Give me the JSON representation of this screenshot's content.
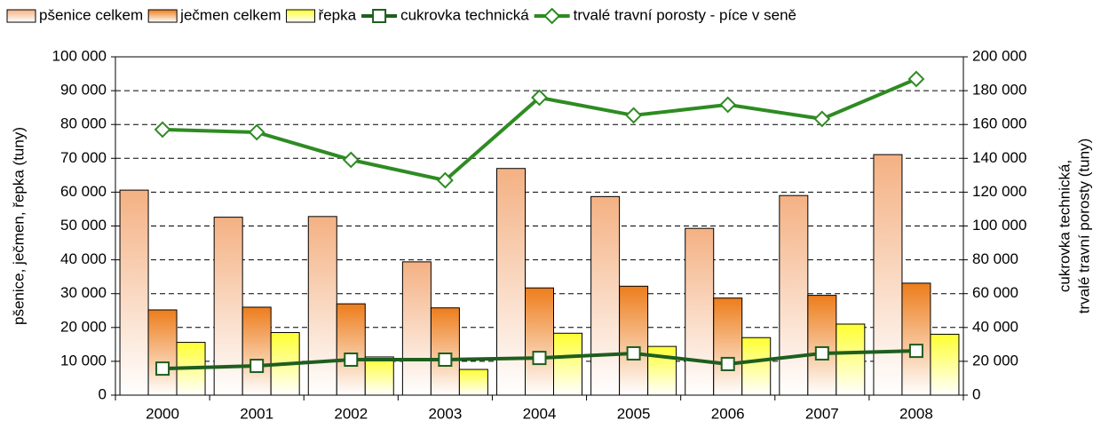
{
  "chart_data": {
    "type": "bar_line",
    "categories": [
      "2000",
      "2001",
      "2002",
      "2003",
      "2004",
      "2005",
      "2006",
      "2007",
      "2008"
    ],
    "series": [
      {
        "name": "pšenice celkem",
        "type": "bar",
        "color": "#f4b183",
        "values": [
          60600,
          52600,
          52800,
          39400,
          67000,
          58700,
          49300,
          59000,
          71100
        ]
      },
      {
        "name": "ječmen celkem",
        "type": "bar",
        "color": "#ed7d1c",
        "values": [
          25200,
          26000,
          27000,
          25800,
          31700,
          32200,
          28700,
          29500,
          33100
        ]
      },
      {
        "name": "řepka",
        "type": "bar",
        "color": "#ffff33",
        "values": [
          15600,
          18500,
          11300,
          7600,
          18300,
          14400,
          17000,
          21000,
          18000
        ]
      },
      {
        "name": "cukrovka technická",
        "type": "line",
        "marker": "square",
        "axis": "y2",
        "color": "#1e5e1e",
        "values": [
          15700,
          17300,
          21000,
          21000,
          22000,
          24700,
          18400,
          24700,
          26200
        ]
      },
      {
        "name": "trvalé travní porosty - píce v seně",
        "type": "line",
        "marker": "diamond",
        "axis": "y2",
        "color": "#2e8b22",
        "values": [
          157000,
          155400,
          139100,
          127000,
          175900,
          165400,
          171700,
          163300,
          186900
        ]
      }
    ],
    "y_label": "pšenice, ječmen, řepka  (tuny)",
    "y2_label": [
      "cukrovka technická,",
      "trvalé travní porosty (tuny)"
    ],
    "ylim": [
      0,
      100000
    ],
    "yticks": [
      0,
      {
        "value": 10000,
        "label": "10 000"
      },
      {
        "value": 20000,
        "label": "20 000"
      },
      {
        "value": 30000,
        "label": "30 000"
      },
      {
        "value": 40000,
        "label": "40 000"
      },
      {
        "value": 50000,
        "label": "50 000"
      },
      {
        "value": 60000,
        "label": "60 000"
      },
      {
        "value": 70000,
        "label": "70 000"
      },
      {
        "value": 80000,
        "label": "80 000"
      },
      {
        "value": 90000,
        "label": "90 000"
      },
      {
        "value": 100000,
        "label": "100 000"
      }
    ],
    "y2lim": [
      0,
      200000
    ],
    "y2ticks": [
      0,
      {
        "value": 20000,
        "label": "20 000"
      },
      {
        "value": 40000,
        "label": "40 000"
      },
      {
        "value": 60000,
        "label": "60 000"
      },
      {
        "value": 80000,
        "label": "80 000"
      },
      {
        "value": 100000,
        "label": "100 000"
      },
      {
        "value": 120000,
        "label": "120 000"
      },
      {
        "value": 140000,
        "label": "140 000"
      },
      {
        "value": 160000,
        "label": "160 000"
      },
      {
        "value": 180000,
        "label": "180 000"
      },
      {
        "value": 200000,
        "label": "200 000"
      }
    ],
    "grid": true,
    "legend": "top"
  }
}
